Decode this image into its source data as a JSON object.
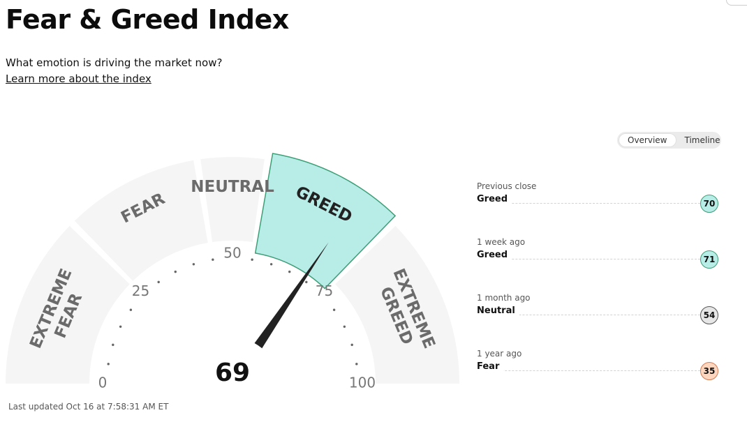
{
  "header": {
    "title": "Fear & Greed Index",
    "subtitle": "What emotion is driving the market now?",
    "learn_more": "Learn more about the index"
  },
  "tabs": [
    {
      "label": "Overview",
      "active": true
    },
    {
      "label": "Timeline",
      "active": false
    }
  ],
  "gauge": {
    "value": 69,
    "value_label": "69",
    "min": 0,
    "max": 100,
    "segments": [
      {
        "lines": [
          "EXTREME",
          "FEAR"
        ],
        "from": 0,
        "to": 25,
        "active": false
      },
      {
        "lines": [
          "FEAR"
        ],
        "from": 25,
        "to": 45,
        "active": false
      },
      {
        "lines": [
          "NEUTRAL"
        ],
        "from": 45,
        "to": 55,
        "active": false
      },
      {
        "lines": [
          "GREED"
        ],
        "from": 55,
        "to": 75,
        "active": true
      },
      {
        "lines": [
          "EXTREME",
          "GREED"
        ],
        "from": 75,
        "to": 100,
        "active": false
      }
    ],
    "tick_labels": [
      "0",
      "25",
      "50",
      "75",
      "100"
    ],
    "colors": {
      "segment_inactive": "#f5f5f5",
      "segment_active_fill": "#b8ece7",
      "segment_active_stroke": "#3e9e77",
      "segment_label": "#6b6b6b",
      "segment_label_active": "#222222",
      "needle": "#222222"
    }
  },
  "updated": "Last updated Oct 16 at 7:58:31 AM ET",
  "history": [
    {
      "label": "Previous close",
      "rating": "Greed",
      "score": "70",
      "color": "#b8ece7",
      "border": "#3e9e77"
    },
    {
      "label": "1 week ago",
      "rating": "Greed",
      "score": "71",
      "color": "#b8ece7",
      "border": "#3e9e77"
    },
    {
      "label": "1 month ago",
      "rating": "Neutral",
      "score": "54",
      "color": "#e6e6e6",
      "border": "#555555"
    },
    {
      "label": "1 year ago",
      "rating": "Fear",
      "score": "35",
      "color": "#fdd6c0",
      "border": "#d67a52"
    }
  ]
}
